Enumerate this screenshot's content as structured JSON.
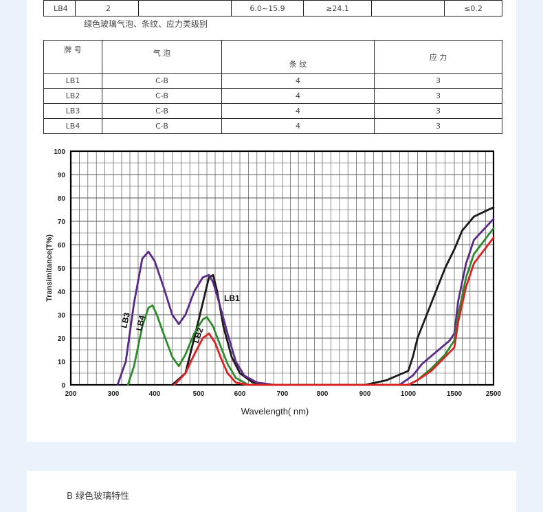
{
  "top_table": {
    "row": [
      "LB4",
      "2",
      "",
      "6.0~15.9",
      "≥24.1",
      "",
      "≤0.2"
    ]
  },
  "caption": "绿色玻璃气泡、条纹、应力类级别",
  "grade_table": {
    "headers": [
      "牌 号",
      "气 泡",
      "条 纹",
      "应 力"
    ],
    "rows": [
      [
        "LB1",
        "C-B",
        "4",
        "3"
      ],
      [
        "LB2",
        "C-B",
        "4",
        "3"
      ],
      [
        "LB3",
        "C-B",
        "4",
        "3"
      ],
      [
        "LB4",
        "C-B",
        "4",
        "3"
      ]
    ]
  },
  "section_title": "B 绿色玻璃特性",
  "chart_data": {
    "type": "line",
    "xlabel": "Wavelength( nm)",
    "ylabel": "Transimitance(T%)",
    "x_ticks": [
      "200",
      "300",
      "400",
      "500",
      "600",
      "700",
      "800",
      "900",
      "1000",
      "1500",
      "2500"
    ],
    "y_ticks": [
      "0",
      "10",
      "20",
      "30",
      "40",
      "50",
      "60",
      "70",
      "80",
      "90",
      "100"
    ],
    "ylim": [
      0,
      100
    ],
    "grid": true,
    "series": [
      {
        "name": "LB1",
        "color": "#1a1a1a",
        "points": [
          [
            440,
            0
          ],
          [
            470,
            5
          ],
          [
            490,
            20
          ],
          [
            510,
            35
          ],
          [
            525,
            46
          ],
          [
            535,
            47
          ],
          [
            545,
            40
          ],
          [
            560,
            25
          ],
          [
            580,
            12
          ],
          [
            600,
            5
          ],
          [
            630,
            1
          ],
          [
            680,
            0
          ],
          [
            800,
            0
          ],
          [
            900,
            0
          ],
          [
            950,
            2
          ],
          [
            1000,
            6
          ],
          [
            1050,
            12
          ],
          [
            1100,
            20
          ],
          [
            1200,
            30
          ],
          [
            1300,
            40
          ],
          [
            1400,
            50
          ],
          [
            1500,
            58
          ],
          [
            1700,
            66
          ],
          [
            2000,
            72
          ],
          [
            2500,
            76
          ]
        ]
      },
      {
        "name": "LB3",
        "color": "#5b2a86",
        "points": [
          [
            310,
            0
          ],
          [
            330,
            10
          ],
          [
            350,
            35
          ],
          [
            370,
            54
          ],
          [
            385,
            57
          ],
          [
            400,
            53
          ],
          [
            420,
            42
          ],
          [
            440,
            30
          ],
          [
            455,
            26
          ],
          [
            470,
            30
          ],
          [
            490,
            40
          ],
          [
            510,
            46
          ],
          [
            525,
            47
          ],
          [
            535,
            44
          ],
          [
            550,
            35
          ],
          [
            570,
            22
          ],
          [
            590,
            10
          ],
          [
            610,
            4
          ],
          [
            640,
            1
          ],
          [
            680,
            0
          ],
          [
            900,
            0
          ],
          [
            980,
            0
          ],
          [
            1050,
            4
          ],
          [
            1150,
            9
          ],
          [
            1300,
            14
          ],
          [
            1450,
            19
          ],
          [
            1500,
            22
          ],
          [
            1600,
            36
          ],
          [
            1800,
            52
          ],
          [
            2000,
            62
          ],
          [
            2500,
            71
          ]
        ]
      },
      {
        "name": "LB4",
        "color": "#2d8a2d",
        "points": [
          [
            335,
            0
          ],
          [
            350,
            8
          ],
          [
            370,
            25
          ],
          [
            385,
            33
          ],
          [
            395,
            34
          ],
          [
            405,
            30
          ],
          [
            420,
            22
          ],
          [
            440,
            12
          ],
          [
            455,
            8
          ],
          [
            470,
            13
          ],
          [
            490,
            22
          ],
          [
            510,
            28
          ],
          [
            520,
            29
          ],
          [
            535,
            25
          ],
          [
            550,
            18
          ],
          [
            570,
            9
          ],
          [
            590,
            3
          ],
          [
            620,
            0
          ],
          [
            1000,
            0
          ],
          [
            1100,
            2
          ],
          [
            1250,
            7
          ],
          [
            1400,
            13
          ],
          [
            1500,
            19
          ],
          [
            1600,
            30
          ],
          [
            1800,
            46
          ],
          [
            2000,
            56
          ],
          [
            2500,
            67
          ]
        ]
      },
      {
        "name": "LB2",
        "color": "#e02020",
        "points": [
          [
            445,
            0
          ],
          [
            470,
            5
          ],
          [
            490,
            13
          ],
          [
            510,
            20
          ],
          [
            525,
            22
          ],
          [
            540,
            18
          ],
          [
            555,
            11
          ],
          [
            570,
            5
          ],
          [
            590,
            1
          ],
          [
            620,
            0
          ],
          [
            1000,
            0
          ],
          [
            1100,
            2
          ],
          [
            1250,
            6
          ],
          [
            1400,
            12
          ],
          [
            1500,
            16
          ],
          [
            1600,
            27
          ],
          [
            1800,
            42
          ],
          [
            2000,
            52
          ],
          [
            2500,
            63
          ]
        ]
      }
    ]
  }
}
